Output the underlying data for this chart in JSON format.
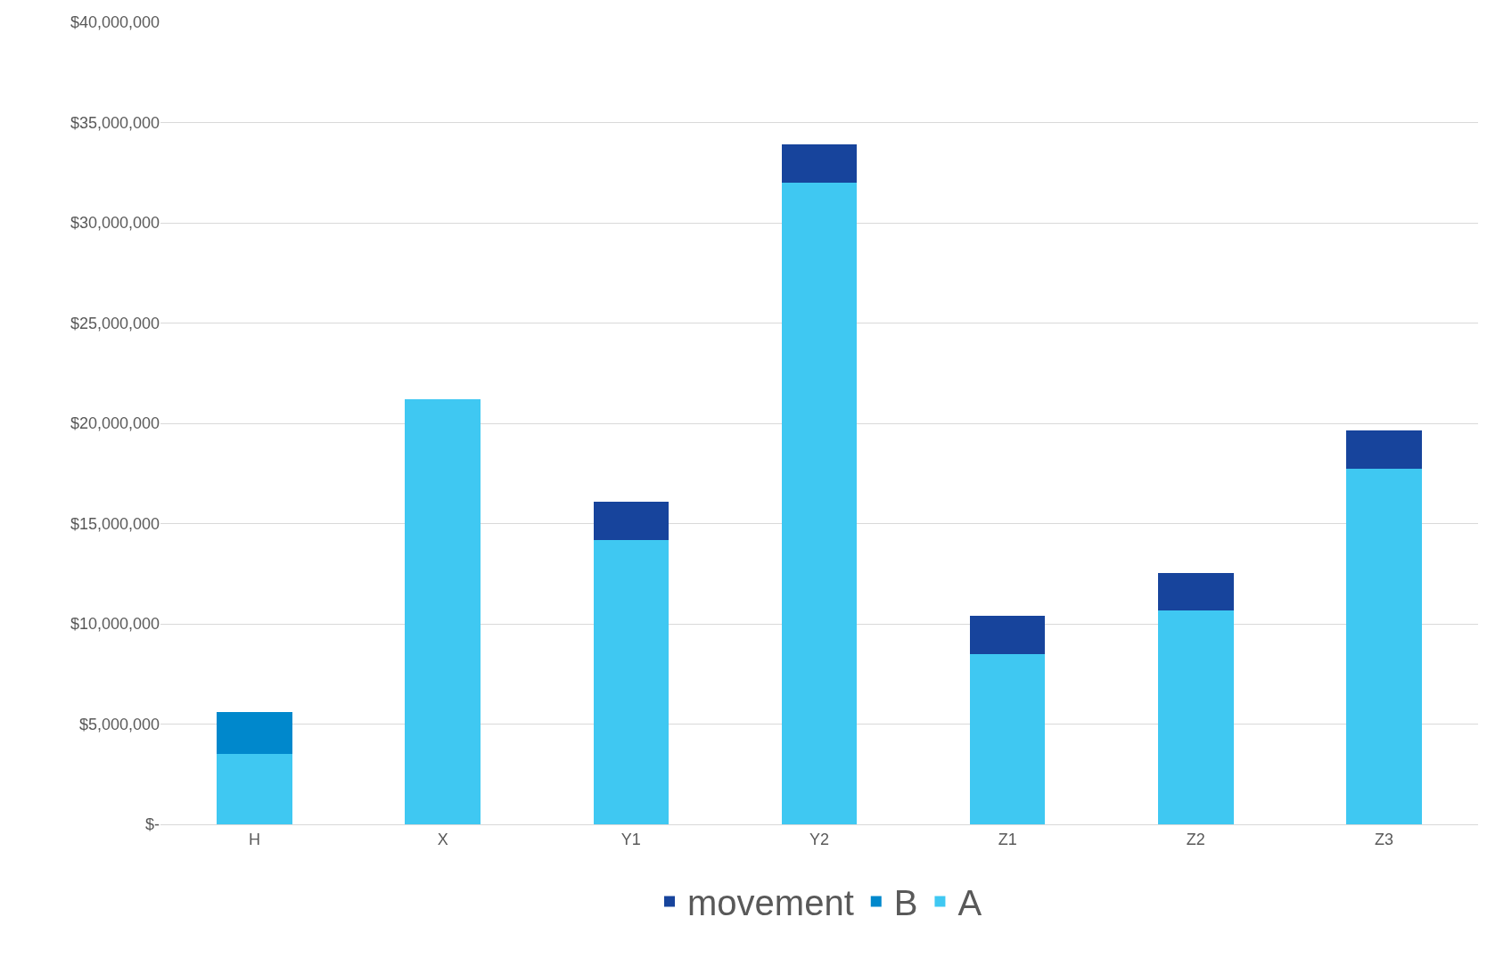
{
  "chart_data": {
    "type": "bar",
    "stacked": true,
    "categories": [
      "H",
      "X",
      "Y1",
      "Y2",
      "Z1",
      "Z2",
      "Z3"
    ],
    "series": [
      {
        "name": "A",
        "color": "#3fc8f2",
        "values": [
          3500000.0,
          21200000.0,
          14200000.0,
          32000000.0,
          8500000.0,
          10650000.0,
          17750000.0
        ]
      },
      {
        "name": "B",
        "color": "#0088cc",
        "values": [
          2100000.0,
          null,
          null,
          null,
          null,
          null,
          null
        ]
      },
      {
        "name": "movement",
        "color": "#17449c",
        "values": [
          null,
          null,
          1900000.0,
          1900000.0,
          1900000.0,
          1900000.0,
          1900000.0
        ]
      }
    ],
    "ylim": [
      0,
      40000000
    ],
    "yticks": [
      {
        "value": 0,
        "label": "$-"
      },
      {
        "value": 5000000,
        "label": "$5,000,000"
      },
      {
        "value": 10000000,
        "label": "$10,000,000"
      },
      {
        "value": 15000000,
        "label": "$15,000,000"
      },
      {
        "value": 20000000,
        "label": "$20,000,000"
      },
      {
        "value": 25000000,
        "label": "$25,000,000"
      },
      {
        "value": 30000000,
        "label": "$30,000,000"
      },
      {
        "value": 35000000,
        "label": "$35,000,000"
      },
      {
        "value": 40000000,
        "label": "$40,000,000"
      }
    ],
    "grid": "y",
    "legend": "bottom"
  }
}
